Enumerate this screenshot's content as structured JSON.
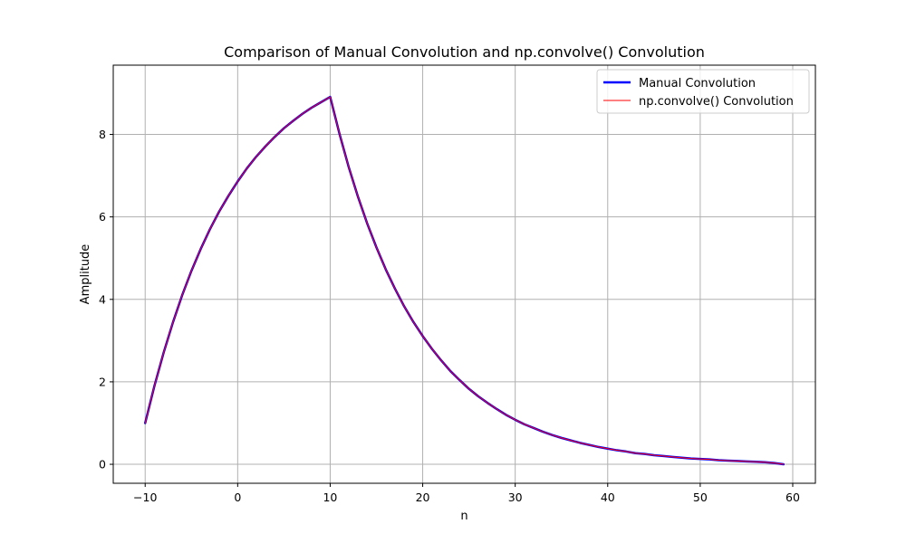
{
  "chart_data": {
    "type": "line",
    "title": "Comparison of Manual Convolution and np.convolve() Convolution",
    "xlabel": "n",
    "ylabel": "Amplitude",
    "xlim": [
      -13.45,
      62.45
    ],
    "ylim": [
      -0.46,
      9.68
    ],
    "xticks": [
      -10,
      0,
      10,
      20,
      30,
      40,
      50,
      60
    ],
    "yticks": [
      0,
      2,
      4,
      6,
      8
    ],
    "xtick_labels": [
      "−10",
      "0",
      "10",
      "20",
      "30",
      "40",
      "50",
      "60"
    ],
    "ytick_labels": [
      "0",
      "2",
      "4",
      "6",
      "8"
    ],
    "grid": true,
    "legend": "top-right",
    "series": [
      {
        "name": "Manual Convolution",
        "color": "#0000ff",
        "linewidth": 2.5,
        "x": [
          -10,
          -9,
          -8,
          -7,
          -6,
          -5,
          -4,
          -3,
          -2,
          -1,
          0,
          1,
          2,
          3,
          4,
          5,
          6,
          7,
          8,
          9,
          10,
          11,
          12,
          13,
          14,
          15,
          16,
          17,
          18,
          19,
          20,
          21,
          22,
          23,
          24,
          25,
          26,
          27,
          28,
          29,
          30,
          31,
          32,
          33,
          34,
          35,
          36,
          37,
          38,
          39,
          40,
          41,
          42,
          43,
          44,
          45,
          46,
          47,
          48,
          49,
          50,
          51,
          52,
          53,
          54,
          55,
          56,
          57,
          58,
          59
        ],
        "y": [
          1.0,
          1.9,
          2.71,
          3.44,
          4.1,
          4.69,
          5.22,
          5.7,
          6.13,
          6.51,
          6.86,
          7.18,
          7.46,
          7.71,
          7.94,
          8.15,
          8.33,
          8.5,
          8.65,
          8.78,
          8.91,
          8.02,
          7.21,
          6.49,
          5.84,
          5.26,
          4.73,
          4.26,
          3.83,
          3.45,
          3.11,
          2.8,
          2.52,
          2.26,
          2.04,
          1.83,
          1.65,
          1.49,
          1.34,
          1.2,
          1.08,
          0.97,
          0.88,
          0.79,
          0.71,
          0.64,
          0.58,
          0.52,
          0.47,
          0.42,
          0.38,
          0.34,
          0.31,
          0.27,
          0.25,
          0.22,
          0.2,
          0.18,
          0.16,
          0.14,
          0.13,
          0.12,
          0.1,
          0.09,
          0.08,
          0.07,
          0.06,
          0.05,
          0.03,
          0.0
        ]
      },
      {
        "name": "np.convolve() Convolution",
        "color": "#ff0000",
        "linewidth": 1,
        "x": [
          -10,
          -9,
          -8,
          -7,
          -6,
          -5,
          -4,
          -3,
          -2,
          -1,
          0,
          1,
          2,
          3,
          4,
          5,
          6,
          7,
          8,
          9,
          10,
          11,
          12,
          13,
          14,
          15,
          16,
          17,
          18,
          19,
          20,
          21,
          22,
          23,
          24,
          25,
          26,
          27,
          28,
          29,
          30,
          31,
          32,
          33,
          34,
          35,
          36,
          37,
          38,
          39,
          40,
          41,
          42,
          43,
          44,
          45,
          46,
          47,
          48,
          49,
          50,
          51,
          52,
          53,
          54,
          55,
          56,
          57,
          58,
          59
        ],
        "y": [
          1.0,
          1.9,
          2.71,
          3.44,
          4.1,
          4.69,
          5.22,
          5.7,
          6.13,
          6.51,
          6.86,
          7.18,
          7.46,
          7.71,
          7.94,
          8.15,
          8.33,
          8.5,
          8.65,
          8.78,
          8.91,
          8.02,
          7.21,
          6.49,
          5.84,
          5.26,
          4.73,
          4.26,
          3.83,
          3.45,
          3.11,
          2.8,
          2.52,
          2.26,
          2.04,
          1.83,
          1.65,
          1.49,
          1.34,
          1.2,
          1.08,
          0.97,
          0.88,
          0.79,
          0.71,
          0.64,
          0.58,
          0.52,
          0.47,
          0.42,
          0.38,
          0.34,
          0.31,
          0.27,
          0.25,
          0.22,
          0.2,
          0.18,
          0.16,
          0.14,
          0.13,
          0.12,
          0.1,
          0.09,
          0.08,
          0.07,
          0.06,
          0.05,
          0.03,
          0.0
        ]
      }
    ]
  }
}
